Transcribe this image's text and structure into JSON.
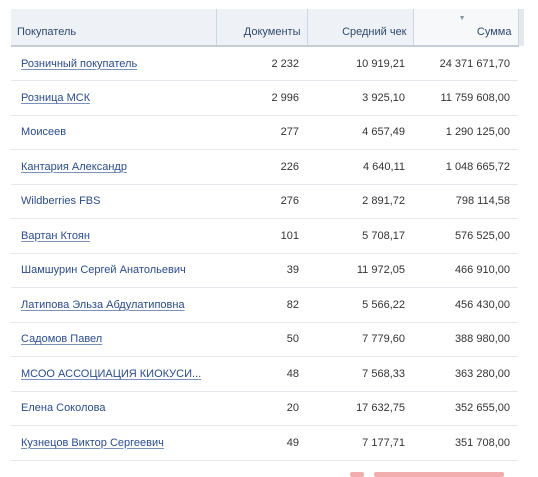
{
  "table": {
    "columns": [
      {
        "label": "Покупатель",
        "align": "left"
      },
      {
        "label": "Документы",
        "align": "right"
      },
      {
        "label": "Средний чек",
        "align": "right"
      },
      {
        "label": "Сумма",
        "align": "right",
        "sorted": "desc"
      }
    ],
    "sort_icon": "sort-desc-icon",
    "rows": [
      {
        "name": "Розничный покупатель",
        "link": true,
        "docs": "2 232",
        "avg": "10 919,21",
        "sum": "24 371 671,70"
      },
      {
        "name": "Розница МСК",
        "link": true,
        "docs": "2 996",
        "avg": "3 925,10",
        "sum": "11 759 608,00"
      },
      {
        "name": "Моисеев",
        "link": false,
        "docs": "277",
        "avg": "4 657,49",
        "sum": "1 290 125,00"
      },
      {
        "name": "Кантария Александр",
        "link": true,
        "docs": "226",
        "avg": "4 640,11",
        "sum": "1 048 665,72"
      },
      {
        "name": "Wildberries FBS",
        "link": false,
        "docs": "276",
        "avg": "2 891,72",
        "sum": "798 114,58"
      },
      {
        "name": "Вартан Ктоян",
        "link": true,
        "docs": "101",
        "avg": "5 708,17",
        "sum": "576 525,00"
      },
      {
        "name": "Шамшурин Сергей Анатольевич",
        "link": false,
        "docs": "39",
        "avg": "11 972,05",
        "sum": "466 910,00"
      },
      {
        "name": "Латипова Эльза Абдулатиповна",
        "link": true,
        "docs": "82",
        "avg": "5 566,22",
        "sum": "456 430,00"
      },
      {
        "name": "Садомов Павел",
        "link": true,
        "docs": "50",
        "avg": "7 779,60",
        "sum": "388 980,00"
      },
      {
        "name": "МСОО АССОЦИАЦИЯ КИОКУСИ...",
        "link": true,
        "docs": "48",
        "avg": "7 568,33",
        "sum": "363 280,00"
      },
      {
        "name": "Елена Соколова",
        "link": false,
        "docs": "20",
        "avg": "17 632,75",
        "sum": "352 655,00"
      },
      {
        "name": "Кузнецов Виктор Сергеевич",
        "link": true,
        "docs": "49",
        "avg": "7 177,71",
        "sum": "351 708,00"
      }
    ]
  },
  "colors": {
    "header_bg": "#eef1f5",
    "header_text": "#2f4a6f",
    "link": "#2a4c8a",
    "text": "#333333",
    "row_border": "#e3e6ea"
  }
}
